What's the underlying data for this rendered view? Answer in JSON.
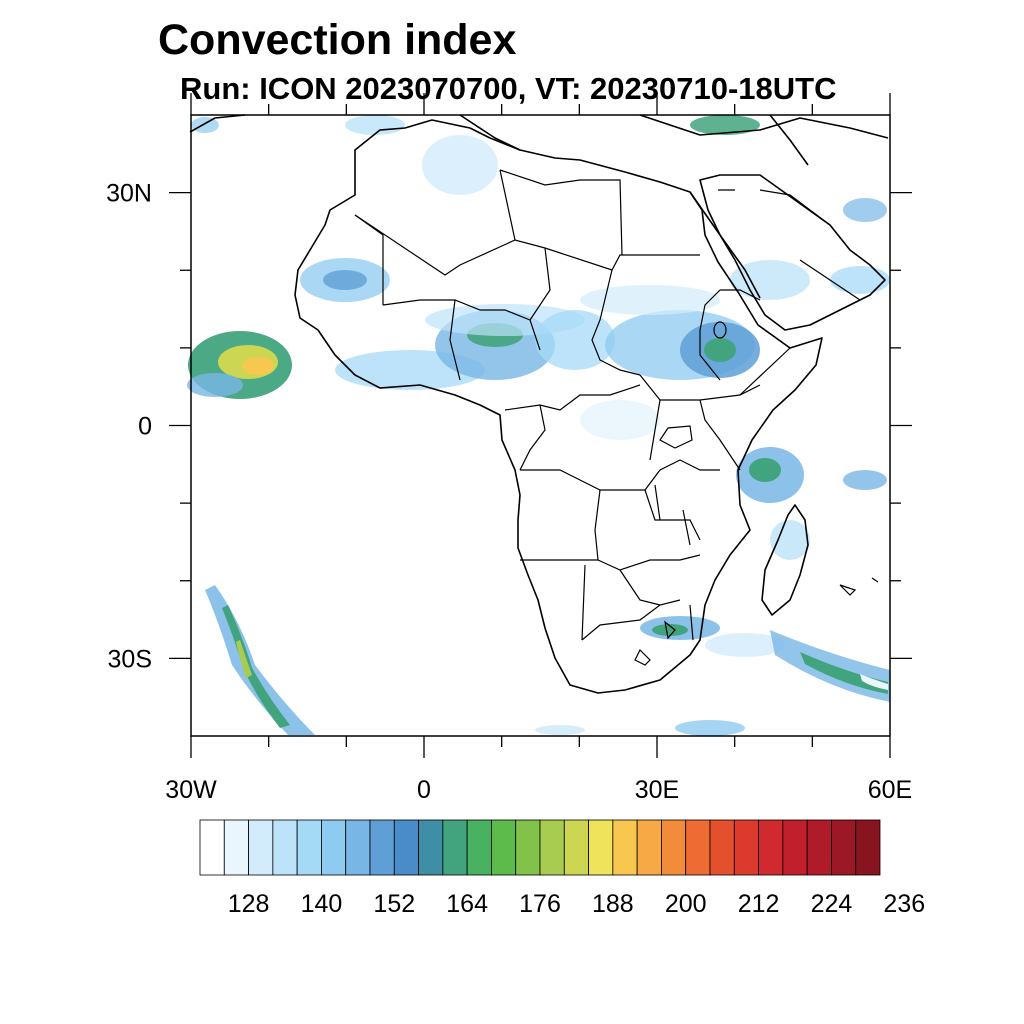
{
  "title": "Convection index",
  "subtitle": "Run: ICON 2023070700,  VT: 20230710-18UTC",
  "map": {
    "lon_range": [
      -30,
      60
    ],
    "lat_range": [
      -40,
      40
    ],
    "lon_tick_labels": [
      {
        "lon": -30,
        "label": "30W"
      },
      {
        "lon": 0,
        "label": "0"
      },
      {
        "lon": 30,
        "label": "30E"
      },
      {
        "lon": 60,
        "label": "60E"
      }
    ],
    "lat_tick_labels": [
      {
        "lat": 30,
        "label": "30N"
      },
      {
        "lat": 0,
        "label": "0"
      },
      {
        "lat": -30,
        "label": "30S"
      }
    ],
    "minor_lon_ticks": [
      -20,
      -10,
      10,
      20,
      40,
      50
    ],
    "minor_lat_ticks": [
      20,
      10,
      -10,
      -20
    ]
  },
  "colorbar": {
    "colors": [
      "#ffffff",
      "#eaf6fd",
      "#d2ecfb",
      "#bce3f9",
      "#a5daf7",
      "#8ecbf0",
      "#78b6e6",
      "#5f9fd6",
      "#4a8cc9",
      "#3e8fa6",
      "#42a47e",
      "#48b260",
      "#5cbb4a",
      "#83c24a",
      "#a8cc4f",
      "#cdd653",
      "#eee35a",
      "#f7c74f",
      "#f6a944",
      "#f28c3b",
      "#ee6c33",
      "#e4502d",
      "#dc3a2d",
      "#d12a2e",
      "#c21f2c",
      "#af1b29",
      "#9c1826",
      "#881420"
    ],
    "labels": [
      "128",
      "140",
      "152",
      "164",
      "176",
      "188",
      "200",
      "212",
      "224",
      "236"
    ],
    "label_start_index": 2,
    "label_every": 3
  }
}
